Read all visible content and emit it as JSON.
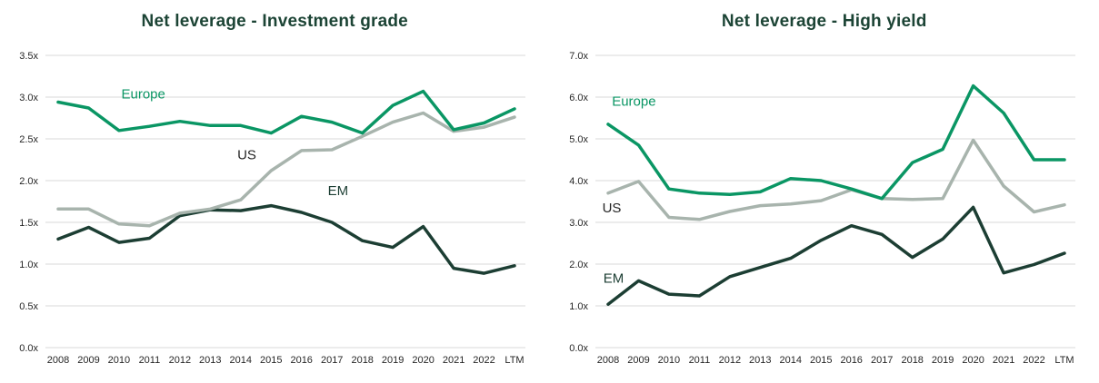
{
  "colors": {
    "title": "#1c4435",
    "europe": "#0a9664",
    "us": "#a8b4ad",
    "em": "#1c3e33",
    "us_label": "#262626",
    "grid": "#d9d9d9",
    "tick": "#262626",
    "background": "#ffffff"
  },
  "chart_data": [
    {
      "type": "line",
      "title": "Net leverage - Investment grade",
      "categories": [
        "2008",
        "2009",
        "2010",
        "2011",
        "2012",
        "2013",
        "2014",
        "2015",
        "2016",
        "2017",
        "2018",
        "2019",
        "2020",
        "2021",
        "2022",
        "LTM"
      ],
      "ylim": [
        0,
        3.5
      ],
      "ytick_step": 0.5,
      "ytick_labels": [
        "3.5x",
        "3.0x",
        "2.5x",
        "2.0x",
        "1.5x",
        "1.0x",
        "0.5x",
        "0.0x"
      ],
      "grid": "horizontal",
      "legend": "inline-labels",
      "xlabel": "",
      "ylabel": "",
      "series": [
        {
          "name": "Europe",
          "color_key": "europe",
          "values": [
            2.94,
            2.87,
            2.6,
            2.65,
            2.71,
            2.66,
            2.66,
            2.57,
            2.77,
            2.7,
            2.57,
            2.9,
            3.07,
            2.61,
            2.69,
            2.86
          ]
        },
        {
          "name": "US",
          "color_key": "us",
          "values": [
            1.66,
            1.66,
            1.48,
            1.46,
            1.61,
            1.66,
            1.77,
            2.12,
            2.36,
            2.37,
            2.53,
            2.7,
            2.81,
            2.59,
            2.64,
            2.76
          ]
        },
        {
          "name": "EM",
          "color_key": "em",
          "values": [
            1.3,
            1.44,
            1.26,
            1.31,
            1.58,
            1.65,
            1.64,
            1.7,
            1.62,
            1.5,
            1.28,
            1.2,
            1.45,
            0.95,
            0.89,
            0.98
          ]
        }
      ],
      "series_labels": [
        {
          "text": "Europe",
          "x": 2.8,
          "y": 3.04,
          "color_key": "europe"
        },
        {
          "text": "US",
          "x": 6.2,
          "y": 2.31,
          "color_key": "us_label"
        },
        {
          "text": "EM",
          "x": 9.2,
          "y": 1.88,
          "color_key": "em"
        }
      ]
    },
    {
      "type": "line",
      "title": "Net leverage - High yield",
      "categories": [
        "2008",
        "2009",
        "2010",
        "2011",
        "2012",
        "2013",
        "2014",
        "2015",
        "2016",
        "2017",
        "2018",
        "2019",
        "2020",
        "2021",
        "2022",
        "LTM"
      ],
      "ylim": [
        0,
        7.0
      ],
      "ytick_step": 1.0,
      "ytick_labels": [
        "7.0x",
        "6.0x",
        "5.0x",
        "4.0x",
        "3.0x",
        "2.0x",
        "1.0x",
        "0.0x"
      ],
      "grid": "horizontal",
      "legend": "inline-labels",
      "xlabel": "",
      "ylabel": "",
      "series": [
        {
          "name": "Europe",
          "color_key": "europe",
          "values": [
            5.35,
            4.85,
            3.8,
            3.7,
            3.67,
            3.73,
            4.05,
            4.0,
            3.8,
            3.57,
            4.43,
            4.75,
            6.27,
            5.62,
            4.5,
            4.5
          ]
        },
        {
          "name": "US",
          "color_key": "us",
          "values": [
            3.7,
            3.98,
            3.12,
            3.07,
            3.26,
            3.4,
            3.44,
            3.52,
            3.78,
            3.57,
            3.55,
            3.57,
            4.97,
            3.87,
            3.25,
            3.42
          ]
        },
        {
          "name": "EM",
          "color_key": "em",
          "values": [
            1.04,
            1.6,
            1.28,
            1.24,
            1.7,
            1.92,
            2.14,
            2.57,
            2.92,
            2.71,
            2.16,
            2.6,
            3.36,
            1.79,
            1.99,
            2.26
          ]
        }
      ],
      "series_labels": [
        {
          "text": "Europe",
          "x": 0.85,
          "y": 5.9,
          "color_key": "europe"
        },
        {
          "text": "US",
          "x": 0.12,
          "y": 3.35,
          "color_key": "us_label"
        },
        {
          "text": "EM",
          "x": 0.18,
          "y": 1.66,
          "color_key": "em"
        }
      ]
    }
  ]
}
